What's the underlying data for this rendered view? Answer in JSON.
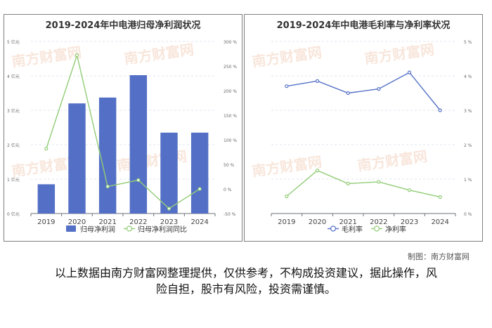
{
  "watermark": "南方财富网",
  "credit": "制图：南方财富网",
  "disclaimer": {
    "line1": "以上数据由南方财富网整理提供，仅供参考，不构成投资建议，据此操作，风",
    "line2": "险自担，股市有风险，投资需谨慎。"
  },
  "chart_data": [
    {
      "type": "bar",
      "title": "2019-2024年中电港归母净利润状况",
      "categories": [
        "2019",
        "2020",
        "2021",
        "2022",
        "2023",
        "2024"
      ],
      "series": [
        {
          "name": "归母净利润",
          "kind": "bar",
          "axis": "left",
          "color": "#5470c6",
          "values": [
            0.85,
            3.2,
            3.37,
            4.02,
            2.35,
            2.35
          ]
        },
        {
          "name": "归母净利润同比",
          "kind": "line",
          "axis": "right",
          "color": "#91cc75",
          "values": [
            82,
            272,
            5,
            18,
            -40,
            0
          ]
        }
      ],
      "y_left": {
        "ticks": [
          "0 亿元",
          "1 亿元",
          "2 亿元",
          "3 亿元",
          "4 亿元",
          "5 亿元"
        ],
        "ylim": [
          0,
          5
        ]
      },
      "y_right": {
        "ticks": [
          "-50 %",
          "0 %",
          "50 %",
          "100 %",
          "150 %",
          "200 %",
          "250 %",
          "300 %"
        ],
        "ylim": [
          -50,
          300
        ]
      },
      "legend": "bottom"
    },
    {
      "type": "line",
      "title": "2019-2024年中电港毛利率与净利率状况",
      "categories": [
        "2019",
        "2020",
        "2021",
        "2022",
        "2023",
        "2024"
      ],
      "series": [
        {
          "name": "毛利率",
          "color": "#5470c6",
          "values": [
            3.7,
            3.85,
            3.5,
            3.62,
            4.1,
            3.0
          ]
        },
        {
          "name": "净利率",
          "color": "#91cc75",
          "values": [
            0.5,
            1.25,
            0.87,
            0.92,
            0.68,
            0.48
          ]
        }
      ],
      "y_right": {
        "ticks": [
          "0 %",
          "1 %",
          "2 %",
          "3 %",
          "4 %",
          "5 %"
        ],
        "ylim": [
          0,
          5
        ]
      },
      "legend": "bottom"
    }
  ]
}
